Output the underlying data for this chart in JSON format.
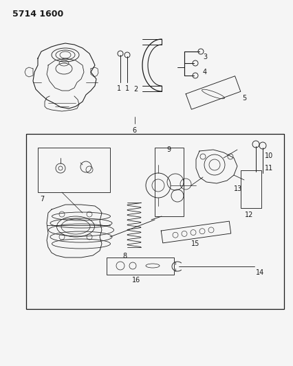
{
  "title": "5714 1600",
  "bg_color": "#f5f5f5",
  "line_color": "#1a1a1a",
  "fig_width": 4.27,
  "fig_height": 5.33,
  "dpi": 100
}
